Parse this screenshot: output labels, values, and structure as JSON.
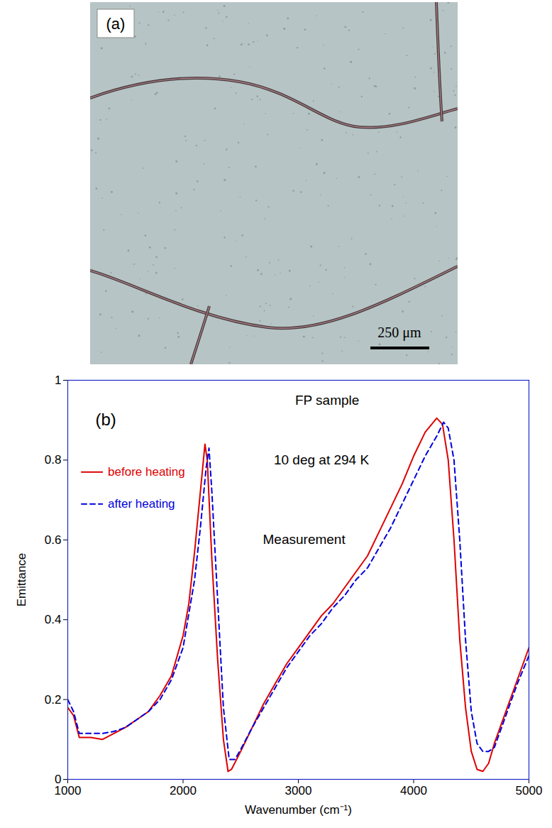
{
  "micrograph": {
    "label": "(a)",
    "scale_bar": "250 μm"
  },
  "chart_data": {
    "type": "line",
    "xlabel": "Wavenumber (cm⁻¹)",
    "ylabel": "Emittance",
    "xlim": [
      1000,
      5000
    ],
    "xticks": [
      1000,
      2000,
      3000,
      4000,
      5000
    ],
    "ylim": [
      0,
      1
    ],
    "yticks": [
      0,
      0.2,
      0.4,
      0.6,
      0.8,
      1
    ],
    "legend": "upper left",
    "annotations": [
      {
        "text": "(b)",
        "x": 1330,
        "y": 0.9
      },
      {
        "text": "FP sample",
        "x": 3250,
        "y": 0.95
      },
      {
        "text": "10 deg at 294 K",
        "x": 3200,
        "y": 0.8
      },
      {
        "text": "Measurement",
        "x": 3050,
        "y": 0.6
      }
    ],
    "series": [
      {
        "name": "before heating",
        "color": "#dd0000",
        "line_style": "solid",
        "x": [
          1000,
          1050,
          1100,
          1200,
          1300,
          1400,
          1500,
          1600,
          1700,
          1800,
          1900,
          2000,
          2050,
          2100,
          2150,
          2190,
          2210,
          2250,
          2300,
          2350,
          2390,
          2420,
          2500,
          2600,
          2700,
          2800,
          2900,
          3000,
          3100,
          3200,
          3300,
          3400,
          3500,
          3600,
          3700,
          3800,
          3900,
          4000,
          4100,
          4200,
          4250,
          4300,
          4350,
          4400,
          4450,
          4500,
          4550,
          4600,
          4650,
          4700,
          4800,
          4900,
          5000
        ],
        "values": [
          0.18,
          0.16,
          0.105,
          0.105,
          0.1,
          0.115,
          0.13,
          0.15,
          0.17,
          0.21,
          0.26,
          0.36,
          0.44,
          0.57,
          0.72,
          0.84,
          0.8,
          0.55,
          0.3,
          0.1,
          0.02,
          0.025,
          0.07,
          0.13,
          0.19,
          0.24,
          0.29,
          0.33,
          0.37,
          0.41,
          0.44,
          0.48,
          0.52,
          0.56,
          0.62,
          0.68,
          0.74,
          0.81,
          0.87,
          0.905,
          0.89,
          0.8,
          0.6,
          0.35,
          0.18,
          0.07,
          0.025,
          0.02,
          0.04,
          0.09,
          0.17,
          0.25,
          0.33
        ]
      },
      {
        "name": "after heating",
        "color": "#0000dd",
        "line_style": "dashed",
        "x": [
          1000,
          1050,
          1100,
          1200,
          1300,
          1400,
          1500,
          1600,
          1700,
          1800,
          1900,
          2000,
          2100,
          2150,
          2200,
          2225,
          2250,
          2300,
          2350,
          2400,
          2450,
          2500,
          2600,
          2700,
          2800,
          2900,
          3000,
          3100,
          3200,
          3300,
          3400,
          3500,
          3600,
          3700,
          3800,
          3900,
          4000,
          4100,
          4200,
          4260,
          4300,
          4350,
          4400,
          4450,
          4500,
          4550,
          4600,
          4650,
          4700,
          4800,
          4900,
          5000
        ],
        "values": [
          0.2,
          0.17,
          0.115,
          0.115,
          0.115,
          0.12,
          0.13,
          0.15,
          0.17,
          0.2,
          0.25,
          0.33,
          0.5,
          0.63,
          0.78,
          0.83,
          0.72,
          0.45,
          0.18,
          0.05,
          0.05,
          0.075,
          0.13,
          0.18,
          0.23,
          0.28,
          0.32,
          0.36,
          0.39,
          0.43,
          0.46,
          0.5,
          0.53,
          0.58,
          0.63,
          0.69,
          0.75,
          0.81,
          0.86,
          0.895,
          0.88,
          0.8,
          0.6,
          0.35,
          0.17,
          0.09,
          0.07,
          0.07,
          0.08,
          0.16,
          0.24,
          0.31
        ]
      }
    ]
  }
}
